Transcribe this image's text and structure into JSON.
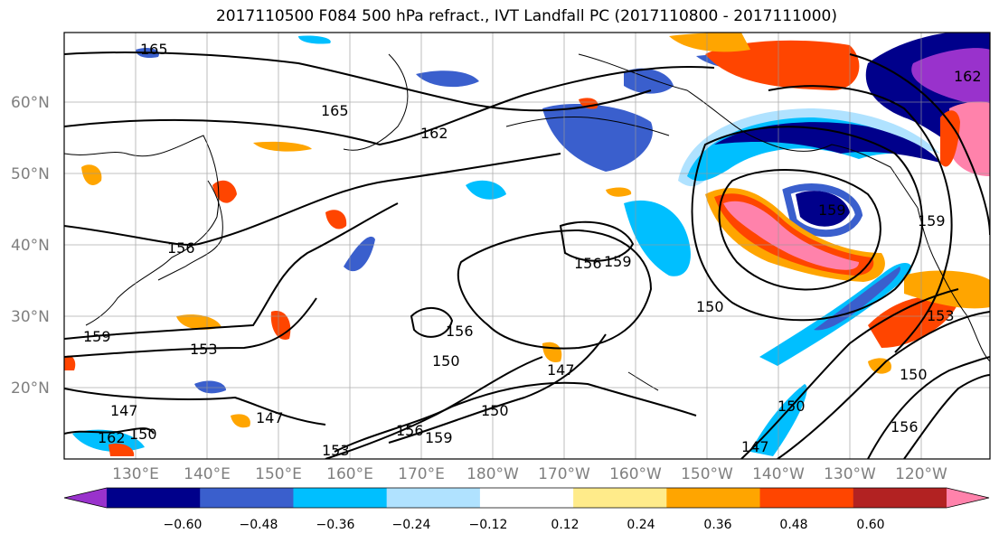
{
  "title": "2017110500 F084 500 hPa refract., IVT Landfall PC (2017110800 - 2017111000)",
  "map": {
    "lat_labels": [
      "60°N",
      "50°N",
      "40°N",
      "30°N",
      "20°N"
    ],
    "lon_labels": [
      "130°E",
      "140°E",
      "150°E",
      "160°E",
      "170°E",
      "180°W",
      "170°W",
      "160°W",
      "150°W",
      "140°W",
      "130°W",
      "120°W"
    ],
    "contour_labels": [
      "165",
      "165",
      "162",
      "156",
      "159",
      "153",
      "147",
      "147",
      "162",
      "150",
      "153",
      "156",
      "159",
      "150",
      "156",
      "150",
      "147",
      "156",
      "159",
      "150",
      "159",
      "150",
      "147",
      "153",
      "150",
      "156",
      "159",
      "162"
    ],
    "fill_colors": [
      "#9932cc",
      "#00008b",
      "#3a5fcd",
      "#00bfff",
      "#b0e2ff",
      "#ffffff",
      "#ffeb8a",
      "#ffa500",
      "#ff4500",
      "#b22222",
      "#ff82ab"
    ]
  },
  "colorbar": {
    "ticks": [
      "−0.60",
      "−0.48",
      "−0.36",
      "−0.24",
      "−0.12",
      "0.12",
      "0.24",
      "0.36",
      "0.48",
      "0.60"
    ],
    "colors": [
      "#9932cc",
      "#00008b",
      "#3a5fcd",
      "#00bfff",
      "#b0e2ff",
      "#ffffff",
      "#ffeb8a",
      "#ffa500",
      "#ff4500",
      "#b22222",
      "#ff82ab"
    ]
  }
}
